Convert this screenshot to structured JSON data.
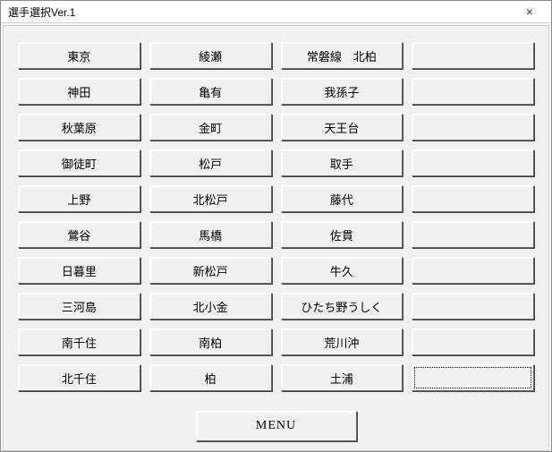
{
  "window": {
    "title": "選手選択Ver.1",
    "close": "×"
  },
  "grid": {
    "rows": [
      [
        "東京",
        "綾瀬",
        "常磐線　北柏",
        ""
      ],
      [
        "神田",
        "亀有",
        "我孫子",
        ""
      ],
      [
        "秋葉原",
        "金町",
        "天王台",
        ""
      ],
      [
        "御徒町",
        "松戸",
        "取手",
        ""
      ],
      [
        "上野",
        "北松戸",
        "藤代",
        ""
      ],
      [
        "鶯谷",
        "馬橋",
        "佐貫",
        ""
      ],
      [
        "日暮里",
        "新松戸",
        "牛久",
        ""
      ],
      [
        "三河島",
        "北小金",
        "ひたち野うしく",
        ""
      ],
      [
        "南千住",
        "南柏",
        "荒川沖",
        ""
      ],
      [
        "北千住",
        "柏",
        "土浦",
        ""
      ]
    ]
  },
  "menu": {
    "label": "MENU"
  }
}
